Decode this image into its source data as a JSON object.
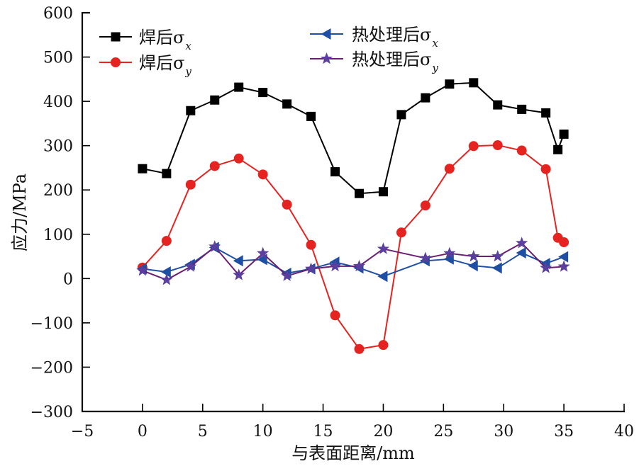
{
  "chart_data": {
    "type": "line",
    "title": "",
    "xlabel": "与表面距离/mm",
    "ylabel": "应力/MPa",
    "xlim": [
      -5,
      40
    ],
    "ylim": [
      -300,
      600
    ],
    "xticks": [
      -5,
      0,
      5,
      10,
      15,
      20,
      25,
      30,
      35,
      40
    ],
    "yticks": [
      -300,
      -200,
      -100,
      0,
      100,
      200,
      300,
      400,
      500,
      600
    ],
    "xtick_labels": [
      "−5",
      "0",
      "5",
      "10",
      "15",
      "20",
      "25",
      "30",
      "35",
      "40"
    ],
    "ytick_labels": [
      "−300",
      "−200",
      "−100",
      "0",
      "100",
      "200",
      "300",
      "400",
      "500",
      "600"
    ],
    "grid": false,
    "legend_placement": "top",
    "series": [
      {
        "name": "焊后σx",
        "label_main": "焊后σ",
        "label_sub": "x",
        "color": "#000000",
        "marker": "square",
        "x": [
          0,
          2,
          4,
          6,
          8,
          10,
          12,
          14,
          16,
          18,
          20,
          21.5,
          23.5,
          25.5,
          27.5,
          29.5,
          31.5,
          33.5,
          34.5,
          35
        ],
        "y": [
          248,
          237,
          379,
          403,
          432,
          420,
          394,
          366,
          241,
          192,
          196,
          370,
          408,
          439,
          442,
          392,
          382,
          374,
          291,
          326
        ]
      },
      {
        "name": "焊后σy",
        "label_main": "焊后σ",
        "label_sub": "y",
        "color": "#e52421",
        "marker": "circle",
        "x": [
          0,
          2,
          4,
          6,
          8,
          10,
          12,
          14,
          16,
          18,
          20,
          21.5,
          23.5,
          25.5,
          27.5,
          29.5,
          31.5,
          33.5,
          34.5,
          35
        ],
        "y": [
          25,
          85,
          212,
          254,
          271,
          235,
          167,
          76,
          -83,
          -159,
          -150,
          104,
          165,
          248,
          299,
          301,
          289,
          247,
          92,
          82
        ]
      },
      {
        "name": "热处理后σx",
        "label_main": "热处理后σ",
        "label_sub": "x",
        "color": "#1f4fa3",
        "marker": "triangle-left",
        "x": [
          0,
          2,
          4,
          6,
          8,
          10,
          12,
          14,
          16,
          18,
          20,
          23.5,
          25.5,
          27.5,
          29.5,
          31.5,
          33.5,
          35
        ],
        "y": [
          22,
          15,
          32,
          70,
          40,
          43,
          12,
          22,
          37,
          24,
          5,
          40,
          44,
          29,
          24,
          58,
          34,
          49
        ]
      },
      {
        "name": "热处理后σy",
        "label_main": "热处理后σ",
        "label_sub": "y",
        "color": "#6b1f72",
        "marker_color": "#5a3f9e",
        "marker": "star",
        "x": [
          0,
          2,
          4,
          6,
          8,
          10,
          12,
          14,
          16,
          18,
          20,
          23.5,
          25.5,
          27.5,
          29.5,
          31.5,
          33.5,
          35
        ],
        "y": [
          18,
          -3,
          27,
          72,
          8,
          57,
          6,
          22,
          28,
          28,
          67,
          46,
          57,
          50,
          50,
          80,
          24,
          27
        ]
      }
    ]
  }
}
